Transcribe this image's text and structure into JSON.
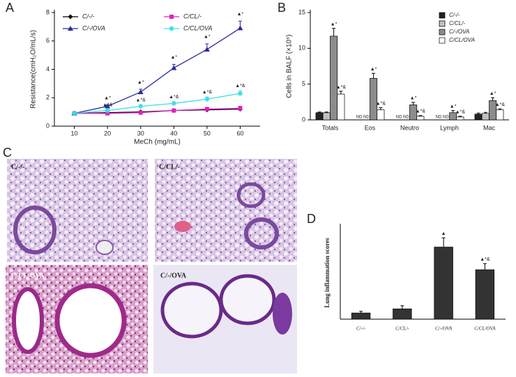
{
  "chart_data": [
    {
      "type": "line",
      "panel_label": "A",
      "x_label": "MeCh (mg/mL)",
      "y_label": "Resistance(cmH₂O/mL/s)",
      "x": [
        10,
        20,
        30,
        40,
        50,
        60
      ],
      "xlim": [
        4,
        66
      ],
      "xticks": [
        10,
        20,
        30,
        40,
        50,
        60
      ],
      "ylim": [
        0,
        8
      ],
      "yticks": [
        0,
        2,
        4,
        6,
        8
      ],
      "legend": "top-left",
      "series": [
        {
          "name": "C/-/-",
          "color": "#000000",
          "marker": "diamond",
          "values": [
            0.9,
            0.95,
            1.0,
            1.1,
            1.15,
            1.2
          ],
          "errors": [
            0.05,
            0.05,
            0.05,
            0.1,
            0.1,
            0.1
          ],
          "significance": [
            null,
            null,
            null,
            null,
            null,
            null
          ]
        },
        {
          "name": "C/CL/-",
          "color": "#e020c0",
          "marker": "square",
          "values": [
            0.9,
            0.9,
            0.95,
            1.1,
            1.2,
            1.25
          ],
          "errors": [
            0.05,
            0.05,
            0.05,
            0.1,
            0.1,
            0.15
          ],
          "significance": [
            null,
            null,
            null,
            null,
            null,
            null
          ]
        },
        {
          "name": "C/-/OVA",
          "color": "#2b2b9a",
          "marker": "triangle",
          "values": [
            0.9,
            1.4,
            2.4,
            4.1,
            5.4,
            6.9
          ],
          "errors": [
            0.05,
            0.1,
            0.2,
            0.25,
            0.4,
            0.5
          ],
          "significance": [
            null,
            "▲*",
            "▲*",
            "▲*",
            "▲*",
            "▲*"
          ]
        },
        {
          "name": "C/CL/OVA",
          "color": "#33e0e6",
          "marker": "cross",
          "values": [
            0.9,
            1.1,
            1.4,
            1.6,
            1.9,
            2.3
          ],
          "errors": [
            0.05,
            0.05,
            0.1,
            0.1,
            0.15,
            0.2
          ],
          "significance": [
            null,
            "▲*&",
            "▲*&",
            "▲*&",
            "▲*&",
            "▲*&"
          ]
        }
      ]
    },
    {
      "type": "bar",
      "panel_label": "B",
      "y_label": "Cells in BALF (×10⁵)",
      "categories": [
        "Totals",
        "Eos",
        "Neutro",
        "Lymph",
        "Mac"
      ],
      "ylim": [
        0,
        15
      ],
      "yticks": [
        0,
        5,
        10,
        15
      ],
      "legend": "top-right",
      "series": [
        {
          "name": "C/-/-",
          "color": "#222222",
          "values": [
            1.0,
            null,
            null,
            null,
            0.8
          ],
          "value_labels": [
            null,
            "ND",
            "ND",
            "ND",
            null
          ],
          "errors": [
            0.1,
            null,
            null,
            null,
            0.15
          ],
          "significance": [
            null,
            null,
            null,
            null,
            null
          ]
        },
        {
          "name": "C/CL/-",
          "color": "#d0d0d0",
          "pattern": "hatched",
          "values": [
            1.0,
            null,
            null,
            null,
            0.9
          ],
          "value_labels": [
            null,
            "ND",
            "ND",
            "ND",
            null
          ],
          "errors": [
            0.1,
            null,
            null,
            null,
            0.15
          ],
          "significance": [
            null,
            null,
            null,
            null,
            null
          ]
        },
        {
          "name": "C/-/OVA",
          "color": "#8c8c8c",
          "values": [
            11.7,
            5.8,
            2.1,
            1.0,
            2.7
          ],
          "errors": [
            1.1,
            0.7,
            0.35,
            0.3,
            0.4
          ],
          "significance": [
            "▲*",
            "▲*",
            "▲*",
            "▲*",
            "▲*"
          ]
        },
        {
          "name": "C/CL/OVA",
          "color": "#ffffff",
          "values": [
            3.6,
            1.4,
            0.5,
            0.4,
            1.4
          ],
          "errors": [
            0.4,
            0.3,
            0.1,
            0.1,
            0.15
          ],
          "significance": [
            "▲*&",
            "▲*&",
            "▲*&",
            "▲*&",
            "▲*&"
          ]
        }
      ]
    },
    {
      "type": "bar",
      "panel_label": "D",
      "y_label": "Lung inflammation scores",
      "categories": [
        "C/-/-",
        "C/CL/-",
        "C/-/OVA",
        "C/CL/OVA"
      ],
      "values": [
        0.3,
        0.5,
        3.5,
        2.4
      ],
      "errors": [
        0.08,
        0.15,
        0.45,
        0.3
      ],
      "significance": [
        null,
        null,
        "▲",
        "▲*&"
      ],
      "color": "#333333",
      "ylim": [
        0,
        4.5
      ]
    }
  ],
  "histology": {
    "panel_label": "C",
    "images": [
      "C/-/-",
      "C/CL/-",
      "C/CL/OVA",
      "C/-/OVA"
    ]
  }
}
